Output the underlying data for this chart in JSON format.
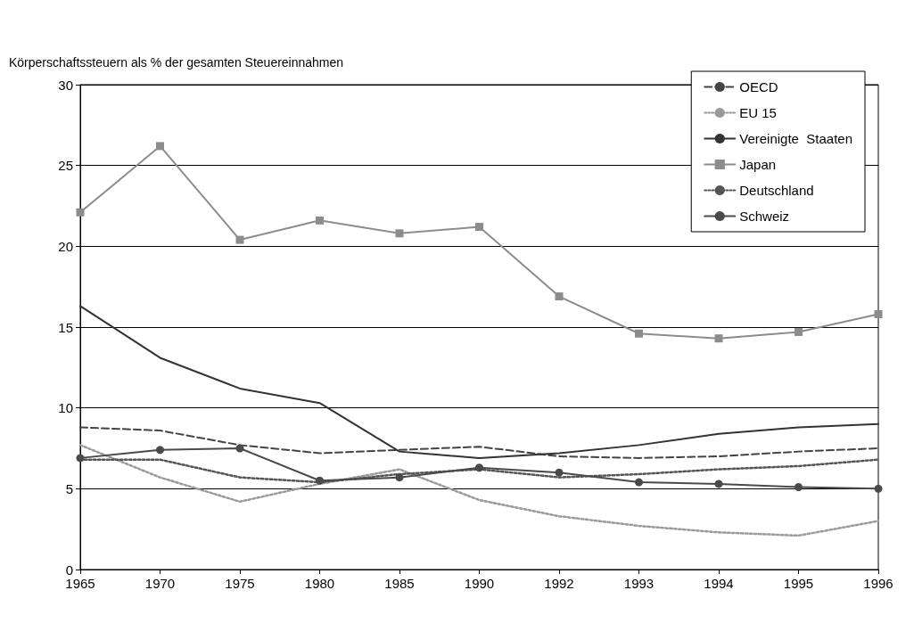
{
  "chart_data": {
    "type": "line",
    "ylabel": "Körperschaftssteuern als % der gesamten Steuereinnahmen",
    "categories": [
      "1965",
      "1970",
      "1975",
      "1980",
      "1985",
      "1990",
      "1992",
      "1993",
      "1994",
      "1995",
      "1996"
    ],
    "series": [
      {
        "name": "OECD",
        "color": "#444444",
        "line_style": "dashed",
        "marker": "none",
        "values": [
          8.8,
          8.6,
          7.7,
          7.2,
          7.4,
          7.6,
          7.0,
          6.9,
          7.0,
          7.3,
          7.5
        ]
      },
      {
        "name": "EU 15",
        "color": "#9a9a9a",
        "line_style": "dotted",
        "marker": "none",
        "values": [
          7.7,
          5.7,
          4.2,
          5.3,
          6.2,
          4.3,
          3.3,
          2.7,
          2.3,
          2.1,
          3.0
        ]
      },
      {
        "name": "Vereinigte  Staaten",
        "color": "#333333",
        "line_style": "solid",
        "marker": "none",
        "values": [
          16.3,
          13.1,
          11.2,
          10.3,
          7.3,
          6.9,
          7.2,
          7.7,
          8.4,
          8.8,
          9.0
        ]
      },
      {
        "name": "Japan",
        "color": "#8c8c8c",
        "line_style": "solid",
        "marker": "square",
        "values": [
          22.1,
          26.2,
          20.4,
          21.6,
          20.8,
          21.2,
          16.9,
          14.6,
          14.3,
          14.7,
          15.8
        ]
      },
      {
        "name": "Deutschland",
        "color": "#555555",
        "line_style": "dotted",
        "marker": "none",
        "values": [
          6.8,
          6.8,
          5.7,
          5.4,
          5.9,
          6.2,
          5.7,
          5.9,
          6.2,
          6.4,
          6.8
        ]
      },
      {
        "name": "Schweiz",
        "color": "#4a4a4a",
        "line_style": "solid",
        "marker": "circle",
        "values": [
          6.9,
          7.4,
          7.5,
          5.5,
          5.7,
          6.3,
          6.0,
          5.4,
          5.3,
          5.1,
          5.0
        ]
      }
    ],
    "ylim": [
      0,
      30
    ],
    "yticks": [
      0,
      5,
      10,
      15,
      20,
      25,
      30
    ],
    "grid": "y",
    "legend": "top right"
  }
}
